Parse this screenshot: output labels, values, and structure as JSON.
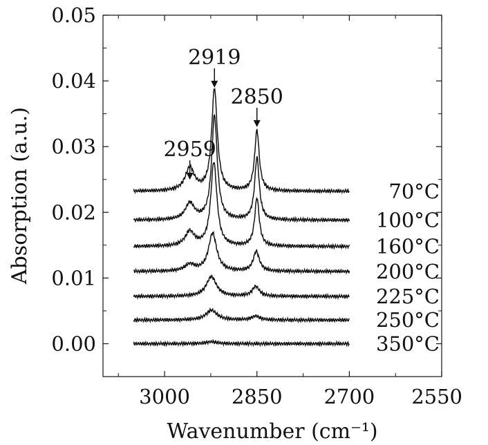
{
  "chart_data": {
    "type": "line",
    "xlabel": "Wavenumber (cm⁻¹)",
    "ylabel": "Absorption (a.u.)",
    "xlim": [
      3100,
      2550
    ],
    "ylim": [
      -0.005,
      0.05
    ],
    "x_ticks": [
      3000,
      2850,
      2700,
      2550
    ],
    "x_tick_labels": [
      "3000",
      "2850",
      "2700",
      "2550"
    ],
    "y_ticks": [
      0.0,
      0.01,
      0.02,
      0.03,
      0.04,
      0.05
    ],
    "y_tick_labels": [
      "0.00",
      "0.01",
      "0.02",
      "0.03",
      "0.04",
      "0.05"
    ],
    "grid": false,
    "x_range_plotted": [
      3050,
      2700
    ],
    "annotations": [
      {
        "label": "2959",
        "x": 2959,
        "y": 0.0275
      },
      {
        "label": "2919",
        "x": 2919,
        "y": 0.0415
      },
      {
        "label": "2850",
        "x": 2850,
        "y": 0.0355
      }
    ],
    "series": [
      {
        "name": "70°C",
        "baseline": 0.0232,
        "peaks": [
          {
            "x": 2959,
            "h": 0.0035,
            "w": 9
          },
          {
            "x": 2919,
            "h": 0.0155,
            "w": 5.5
          },
          {
            "x": 2850,
            "h": 0.0092,
            "w": 4.5
          }
        ]
      },
      {
        "name": "100°C",
        "baseline": 0.0188,
        "peaks": [
          {
            "x": 2959,
            "h": 0.0025,
            "w": 9
          },
          {
            "x": 2919,
            "h": 0.0158,
            "w": 5.5
          },
          {
            "x": 2850,
            "h": 0.0095,
            "w": 4.5
          }
        ]
      },
      {
        "name": "160°C",
        "baseline": 0.0148,
        "peaks": [
          {
            "x": 2959,
            "h": 0.0022,
            "w": 9
          },
          {
            "x": 2920,
            "h": 0.0128,
            "w": 6
          },
          {
            "x": 2850,
            "h": 0.0073,
            "w": 4.5
          }
        ]
      },
      {
        "name": "200°C",
        "baseline": 0.011,
        "peaks": [
          {
            "x": 2959,
            "h": 0.001,
            "w": 10
          },
          {
            "x": 2922,
            "h": 0.0058,
            "w": 8
          },
          {
            "x": 2851,
            "h": 0.003,
            "w": 6
          }
        ]
      },
      {
        "name": "225°C",
        "baseline": 0.0072,
        "peaks": [
          {
            "x": 2924,
            "h": 0.003,
            "w": 10
          },
          {
            "x": 2852,
            "h": 0.0015,
            "w": 7
          }
        ]
      },
      {
        "name": "250°C",
        "baseline": 0.0036,
        "peaks": [
          {
            "x": 2924,
            "h": 0.0015,
            "w": 11
          },
          {
            "x": 2852,
            "h": 0.0006,
            "w": 8
          }
        ]
      },
      {
        "name": "350°C",
        "baseline": 0.0,
        "peaks": [
          {
            "x": 2924,
            "h": 0.0003,
            "w": 12
          }
        ]
      }
    ]
  }
}
